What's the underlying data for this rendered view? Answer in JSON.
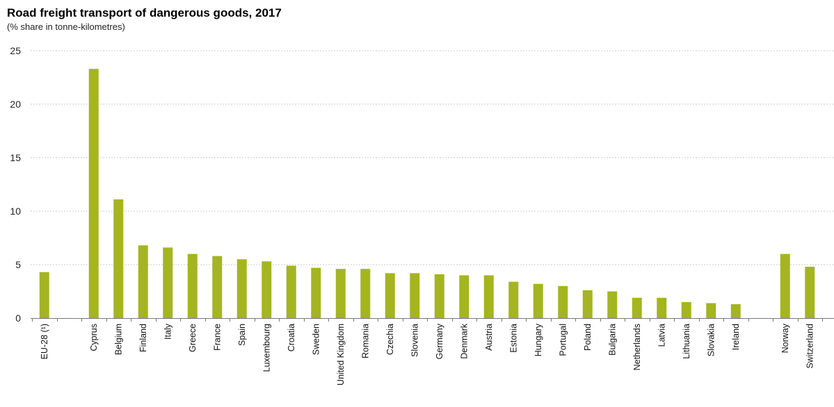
{
  "chart_data": {
    "type": "bar",
    "title": "Road freight transport of dangerous goods, 2017",
    "subtitle": "(% share in tonne-kilometres)",
    "xlabel": "",
    "ylabel": "",
    "ylim": [
      0,
      25
    ],
    "yticks": [
      0,
      5,
      10,
      15,
      20,
      25
    ],
    "grid": true,
    "bar_color": "#a4b520",
    "groups": [
      {
        "categories": [
          "EU-28 (¹)"
        ],
        "values": [
          4.3
        ]
      },
      {
        "categories": [
          "Cyprus",
          "Belgium",
          "Finland",
          "Italy",
          "Greece",
          "France",
          "Spain",
          "Luxembourg",
          "Croatia",
          "Sweden",
          "United Kingdom",
          "Romania",
          "Czechia",
          "Slovenia",
          "Germany",
          "Denmark",
          "Austria",
          "Estonia",
          "Hungary",
          "Portugal",
          "Poland",
          "Bulgaria",
          "Netherlands",
          "Latvia",
          "Lithuania",
          "Slovakia",
          "Ireland"
        ],
        "values": [
          23.3,
          11.1,
          6.8,
          6.6,
          6.0,
          5.8,
          5.5,
          5.3,
          4.9,
          4.7,
          4.6,
          4.6,
          4.2,
          4.2,
          4.1,
          4.0,
          4.0,
          3.4,
          3.2,
          3.0,
          2.6,
          2.5,
          1.9,
          1.9,
          1.5,
          1.4,
          1.3
        ]
      },
      {
        "categories": [
          "Norway",
          "Switzerland"
        ],
        "values": [
          6.0,
          4.8
        ]
      }
    ]
  }
}
